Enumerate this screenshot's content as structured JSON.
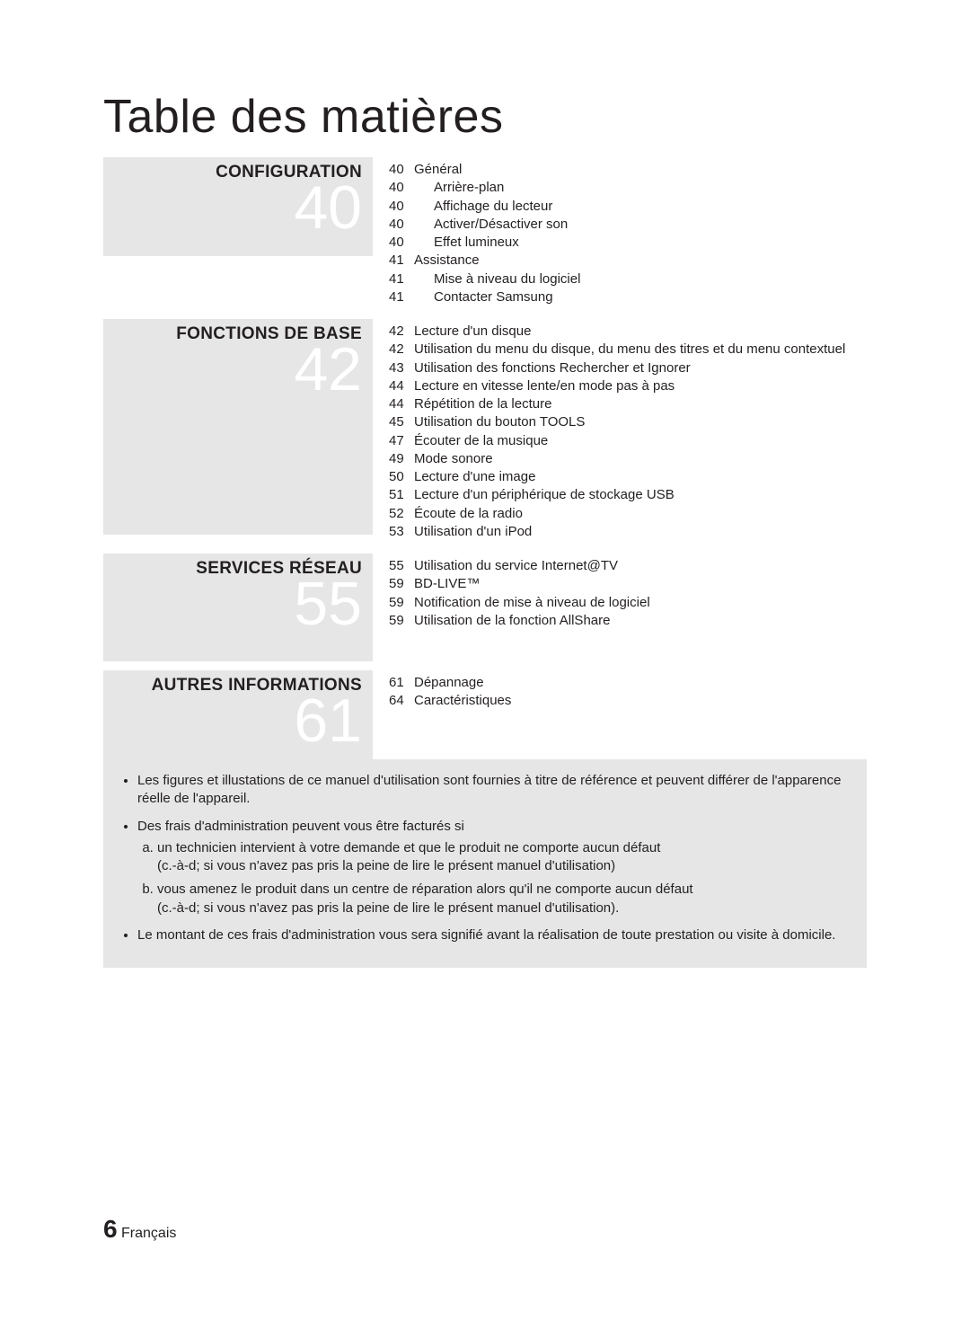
{
  "title": "Table des matières",
  "sections": [
    {
      "heading": "CONFIGURATION",
      "number": "40",
      "height_class": "short",
      "entries": [
        {
          "page": "40",
          "text": "Général",
          "indent": false
        },
        {
          "page": "40",
          "text": "Arrière-plan",
          "indent": true
        },
        {
          "page": "40",
          "text": "Affichage du lecteur",
          "indent": true
        },
        {
          "page": "40",
          "text": "Activer/Désactiver son",
          "indent": true
        },
        {
          "page": "40",
          "text": "Effet lumineux",
          "indent": true
        },
        {
          "page": "41",
          "text": "Assistance",
          "indent": false
        },
        {
          "page": "41",
          "text": "Mise à niveau du logiciel",
          "indent": true
        },
        {
          "page": "41",
          "text": "Contacter Samsung",
          "indent": true
        }
      ]
    },
    {
      "heading": "FONCTIONS DE BASE",
      "number": "42",
      "height_class": "tall",
      "entries": [
        {
          "page": "42",
          "text": "Lecture d'un disque",
          "indent": false
        },
        {
          "page": "42",
          "text": "Utilisation du menu du disque, du menu des titres et du menu contextuel",
          "indent": false
        },
        {
          "page": "43",
          "text": "Utilisation des fonctions Rechercher et Ignorer",
          "indent": false
        },
        {
          "page": "44",
          "text": "Lecture en vitesse lente/en mode pas à pas",
          "indent": false
        },
        {
          "page": "44",
          "text": "Répétition de la lecture",
          "indent": false
        },
        {
          "page": "45",
          "text": "Utilisation du bouton TOOLS",
          "indent": false
        },
        {
          "page": "47",
          "text": "Écouter de la musique",
          "indent": false
        },
        {
          "page": "49",
          "text": "Mode sonore",
          "indent": false
        },
        {
          "page": "50",
          "text": "Lecture d'une image",
          "indent": false
        },
        {
          "page": "51",
          "text": "Lecture d'un périphérique de stockage USB",
          "indent": false
        },
        {
          "page": "52",
          "text": "Écoute de la radio",
          "indent": false
        },
        {
          "page": "53",
          "text": "Utilisation d'un iPod",
          "indent": false
        }
      ]
    },
    {
      "heading": "SERVICES RÉSEAU",
      "number": "55",
      "height_class": "med",
      "entries": [
        {
          "page": "55",
          "text": "Utilisation du service Internet@TV",
          "indent": false
        },
        {
          "page": "59",
          "text": "BD-LIVE™",
          "indent": false
        },
        {
          "page": "59",
          "text": "Notification de mise à niveau de logiciel",
          "indent": false
        },
        {
          "page": "59",
          "text": "Utilisation de la fonction AllShare",
          "indent": false
        }
      ]
    },
    {
      "heading": "AUTRES INFORMATIONS",
      "number": "61",
      "height_class": "short",
      "entries": [
        {
          "page": "61",
          "text": "Dépannage",
          "indent": false
        },
        {
          "page": "64",
          "text": "Caractéristiques",
          "indent": false
        }
      ]
    }
  ],
  "notes": {
    "bullet1": "Les figures et illustations de ce manuel d'utilisation sont fournies à titre de référence et peuvent différer de l'apparence réelle de l'appareil.",
    "bullet2_intro": "Des frais d'administration peuvent vous être facturés si",
    "bullet2_a": "un technicien intervient à votre demande et que le produit ne comporte aucun défaut",
    "bullet2_a_paren": "(c.-à-d; si vous n'avez pas pris la peine de lire le présent manuel d'utilisation)",
    "bullet2_b": "vous amenez le produit dans un centre de réparation alors qu'il ne comporte aucun défaut",
    "bullet2_b_paren": "(c.-à-d; si vous n'avez pas pris la peine de lire le présent manuel d'utilisation).",
    "bullet3": "Le montant de ces frais d'administration vous sera signifié avant la réalisation de toute prestation ou visite à domicile."
  },
  "footer": {
    "page_number": "6",
    "language": "Français"
  },
  "colors": {
    "section_bg": "#e6e6e6",
    "big_number": "#ffffff",
    "text": "#231f20",
    "page_bg": "#ffffff"
  }
}
